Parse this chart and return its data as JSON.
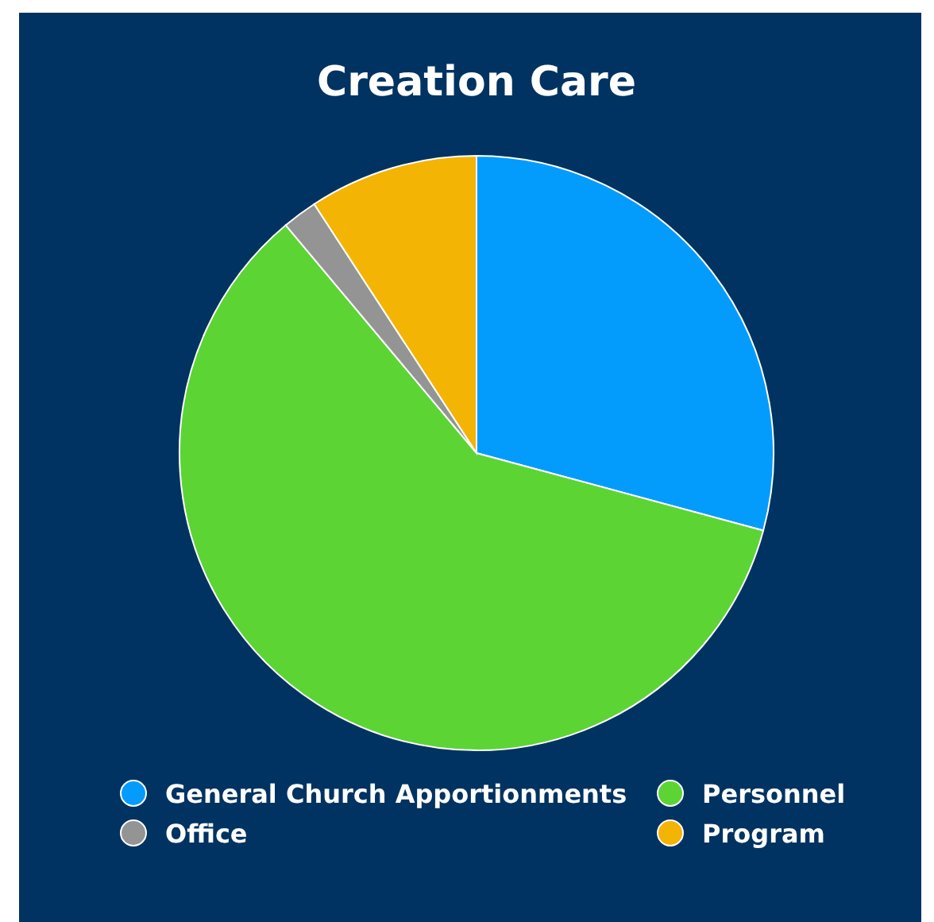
{
  "chart_data": {
    "type": "pie",
    "title": "Creation Care",
    "categories": [
      "General Church Apportionments",
      "Personnel",
      "Office",
      "Program"
    ],
    "values": [
      29.2,
      59.7,
      1.9,
      9.2
    ],
    "colors": [
      "#049cfc",
      "#5cd434",
      "#949494",
      "#f4b404"
    ],
    "legend": "bottom"
  }
}
